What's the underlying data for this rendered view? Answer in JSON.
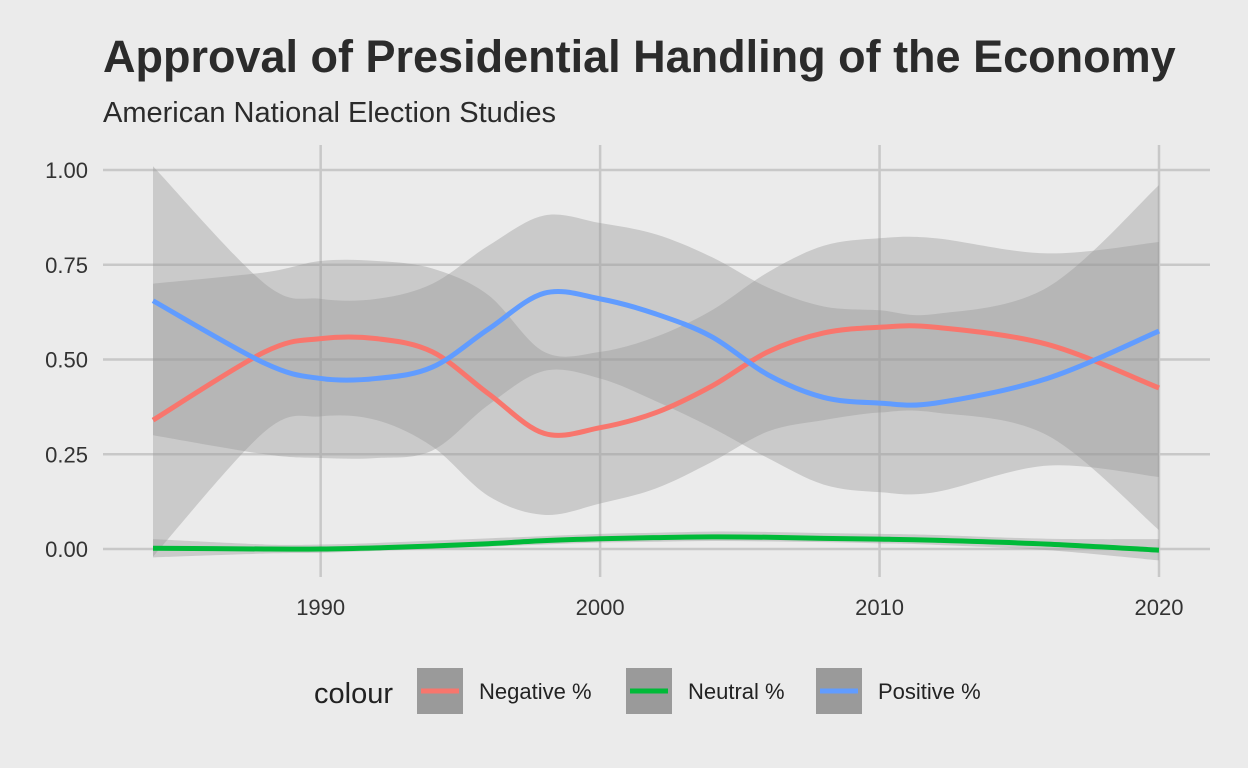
{
  "chart_data": {
    "type": "line",
    "title": "Approval of Presidential Handling of the Economy",
    "subtitle": "American National Election Studies",
    "xlabel": "",
    "ylabel": "",
    "xlim": [
      1984,
      2020
    ],
    "ylim": [
      0,
      1
    ],
    "x_ticks": [
      1990,
      2000,
      2010,
      2020
    ],
    "x_tick_labels": [
      "1990",
      "2000",
      "2010",
      "2020"
    ],
    "y_ticks": [
      0,
      0.25,
      0.5,
      0.75,
      1
    ],
    "y_tick_labels": [
      "0.00",
      "0.25",
      "0.50",
      "0.75",
      "1.00"
    ],
    "grid": true,
    "legend": {
      "title": "colour",
      "position": "bottom",
      "entries": [
        "Negative %",
        "Neutral %",
        "Positive %"
      ]
    },
    "x": [
      1984,
      1988,
      1990,
      1992,
      1994,
      1996,
      1998,
      2000,
      2002,
      2004,
      2006,
      2008,
      2010,
      2012,
      2016,
      2020
    ],
    "series": [
      {
        "name": "Negative %",
        "color": "#f8766d",
        "values": [
          0.34,
          0.52,
          0.555,
          0.555,
          0.52,
          0.41,
          0.305,
          0.32,
          0.36,
          0.43,
          0.52,
          0.57,
          0.585,
          0.585,
          0.54,
          0.425
        ],
        "ci_lower": [
          -0.02,
          0.31,
          0.35,
          0.34,
          0.27,
          0.14,
          0.09,
          0.12,
          0.16,
          0.23,
          0.31,
          0.34,
          0.36,
          0.36,
          0.3,
          0.05
        ],
        "ci_upper": [
          0.7,
          0.73,
          0.76,
          0.76,
          0.74,
          0.67,
          0.52,
          0.52,
          0.56,
          0.63,
          0.73,
          0.8,
          0.82,
          0.82,
          0.78,
          0.81
        ]
      },
      {
        "name": "Neutral %",
        "color": "#00ba38",
        "values": [
          0.002,
          0.0,
          0.0,
          0.003,
          0.008,
          0.014,
          0.022,
          0.027,
          0.03,
          0.032,
          0.031,
          0.028,
          0.026,
          0.023,
          0.013,
          -0.003
        ],
        "ci_lower": [
          -0.022,
          -0.012,
          -0.01,
          -0.005,
          0.0,
          0.006,
          0.012,
          0.017,
          0.019,
          0.021,
          0.02,
          0.018,
          0.015,
          0.011,
          -0.003,
          -0.03
        ],
        "ci_upper": [
          0.026,
          0.012,
          0.012,
          0.016,
          0.022,
          0.028,
          0.034,
          0.04,
          0.043,
          0.046,
          0.045,
          0.042,
          0.04,
          0.037,
          0.027,
          0.026
        ]
      },
      {
        "name": "Positive %",
        "color": "#619cff",
        "values": [
          0.655,
          0.49,
          0.45,
          0.45,
          0.48,
          0.58,
          0.675,
          0.66,
          0.62,
          0.56,
          0.46,
          0.4,
          0.385,
          0.385,
          0.45,
          0.575
        ],
        "ci_lower": [
          0.3,
          0.25,
          0.24,
          0.24,
          0.26,
          0.38,
          0.47,
          0.45,
          0.39,
          0.32,
          0.24,
          0.17,
          0.15,
          0.15,
          0.22,
          0.19
        ],
        "ci_upper": [
          1.01,
          0.7,
          0.66,
          0.66,
          0.7,
          0.8,
          0.88,
          0.86,
          0.83,
          0.77,
          0.69,
          0.64,
          0.63,
          0.62,
          0.69,
          0.96
        ]
      }
    ]
  }
}
